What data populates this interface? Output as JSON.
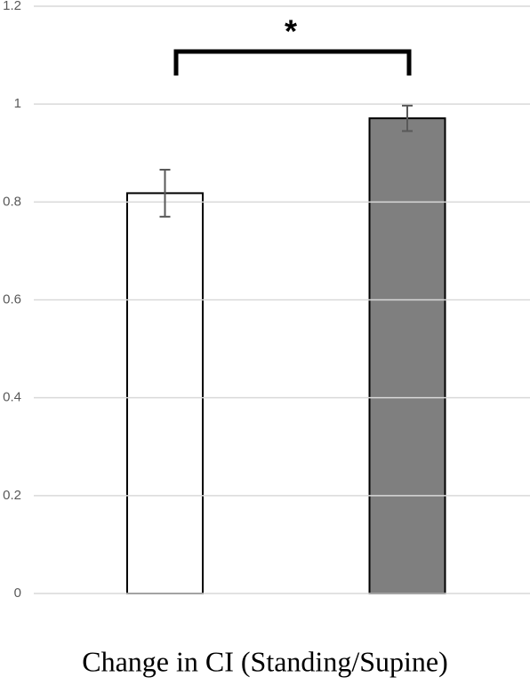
{
  "chart_data": {
    "type": "bar",
    "x_label": "Change in CI (Standing/Supine)",
    "annotation": "*",
    "categories": [
      null,
      null
    ],
    "values": [
      0.818,
      0.971
    ],
    "errors": [
      0.048,
      0.026
    ],
    "colors": [
      "#ffffff",
      "#7f7f7f"
    ],
    "ylim": [
      0,
      1.2
    ],
    "yticks": [
      0,
      0.2,
      0.4,
      0.6,
      0.8,
      1,
      1.2
    ],
    "grid": true
  }
}
